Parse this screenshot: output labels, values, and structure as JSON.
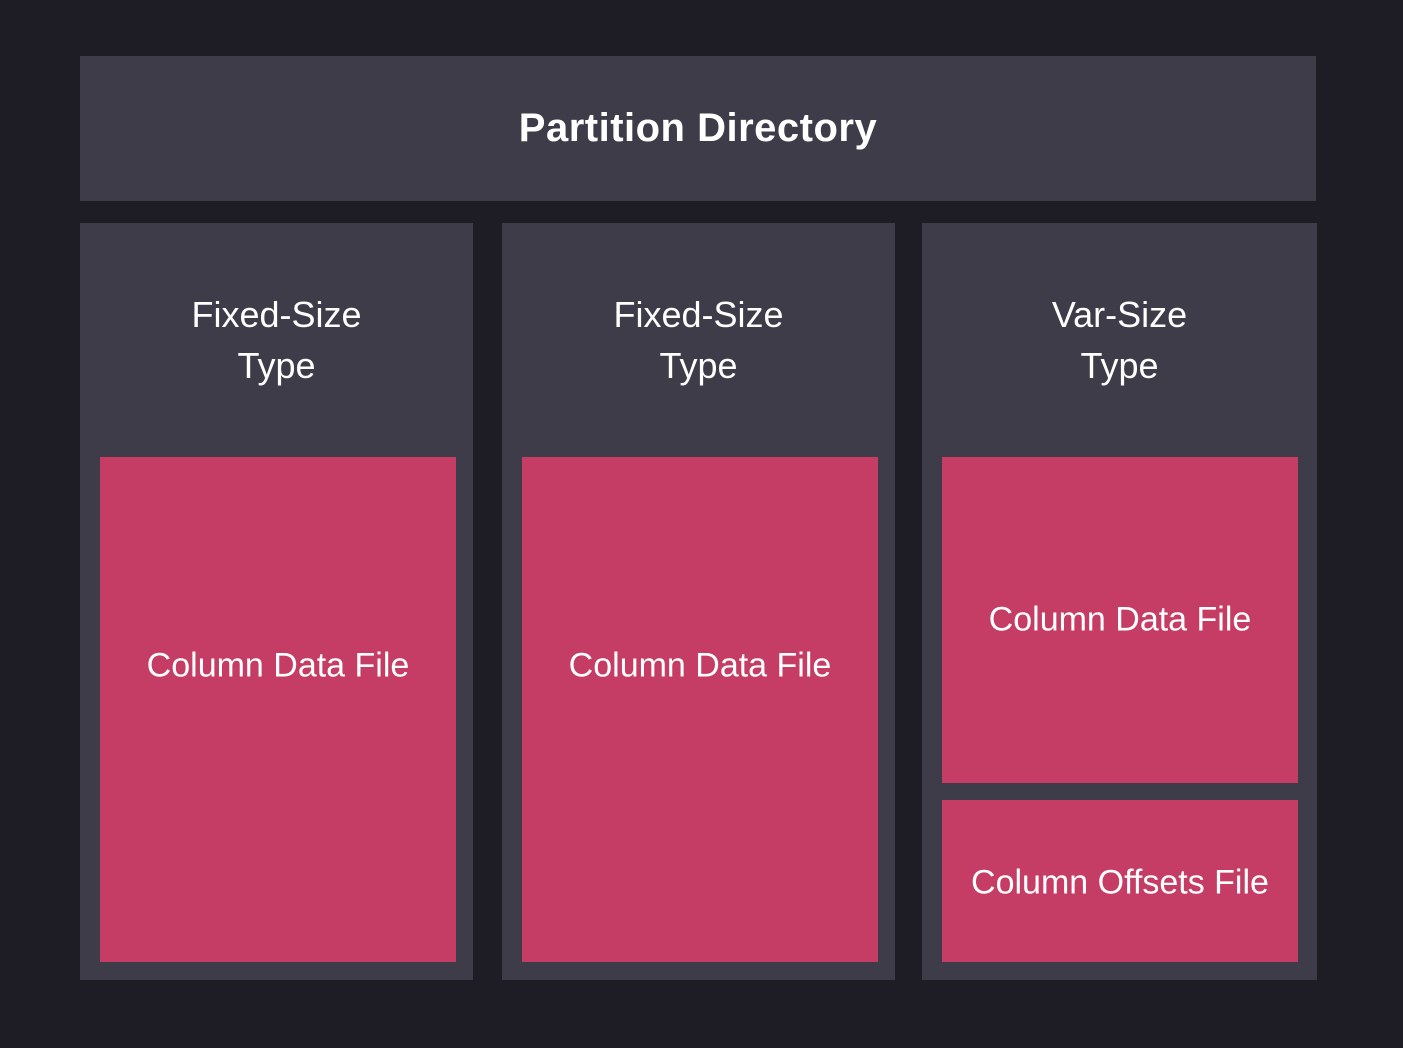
{
  "colors": {
    "background": "#1e1d26",
    "panel": "#3e3c48",
    "accent": "#c53d64",
    "text": "#ffffff"
  },
  "header": {
    "title": "Partition Directory"
  },
  "columns": [
    {
      "title": "Fixed-Size\nType",
      "files": [
        {
          "label": "Column Data File"
        }
      ]
    },
    {
      "title": "Fixed-Size\nType",
      "files": [
        {
          "label": "Column Data File"
        }
      ]
    },
    {
      "title": "Var-Size\nType",
      "files": [
        {
          "label": "Column Data File"
        },
        {
          "label": "Column Offsets File"
        }
      ]
    }
  ]
}
